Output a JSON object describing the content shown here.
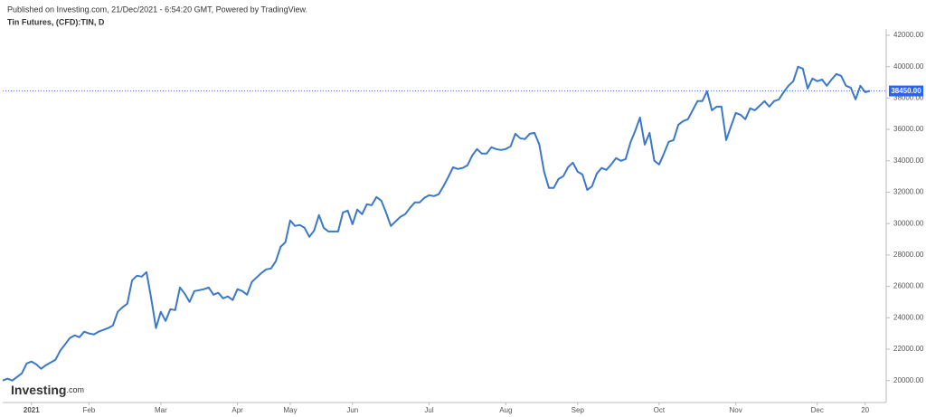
{
  "header": "Published on Investing.com, 21/Dec/2021 - 6:54:20 GMT, Powered by TradingView.",
  "logo": {
    "main": "Investing",
    "suffix": ".com"
  },
  "chart_data": {
    "type": "line",
    "title": "Tin Futures, (CFD):TIN, D",
    "color": "#3b78c6",
    "categories": [
      null,
      null,
      null,
      null,
      null,
      null,
      "2021",
      null,
      null,
      null,
      null,
      null,
      null,
      null,
      null,
      null,
      null,
      null,
      "Feb",
      null,
      null,
      null,
      null,
      null,
      null,
      null,
      null,
      null,
      null,
      null,
      null,
      null,
      null,
      "Mar",
      null,
      null,
      null,
      null,
      null,
      null,
      null,
      null,
      null,
      null,
      null,
      null,
      null,
      null,
      null,
      "Apr",
      null,
      null,
      null,
      null,
      null,
      null,
      null,
      null,
      null,
      null,
      "May",
      null,
      null,
      null,
      null,
      null,
      null,
      null,
      null,
      null,
      null,
      null,
      null,
      "Jun",
      null,
      null,
      null,
      null,
      null,
      null,
      null,
      null,
      null,
      null,
      null,
      null,
      null,
      null,
      null,
      "Jul",
      null,
      null,
      null,
      null,
      null,
      null,
      null,
      null,
      null,
      null,
      null,
      null,
      null,
      null,
      null,
      "Aug",
      null,
      null,
      null,
      null,
      null,
      null,
      null,
      null,
      null,
      null,
      null,
      null,
      null,
      null,
      "Sep",
      null,
      null,
      null,
      null,
      null,
      null,
      null,
      null,
      null,
      null,
      null,
      null,
      null,
      null,
      null,
      null,
      "Oct",
      null,
      null,
      null,
      null,
      null,
      null,
      null,
      null,
      null,
      null,
      null,
      null,
      null,
      null,
      null,
      "Nov",
      null,
      null,
      null,
      null,
      null,
      null,
      null,
      null,
      null,
      null,
      null,
      null,
      null,
      null,
      null,
      null,
      "Dec",
      null,
      null,
      null,
      null,
      null,
      null,
      null,
      null,
      null,
      "20",
      null
    ],
    "values": [
      20000,
      20120,
      20000,
      20230,
      20460,
      21090,
      21210,
      21040,
      20750,
      20980,
      21150,
      21320,
      21900,
      22300,
      22710,
      22880,
      22760,
      23110,
      23000,
      22940,
      23110,
      23230,
      23340,
      23510,
      24380,
      24670,
      24900,
      26390,
      26680,
      26620,
      26910,
      25240,
      23340,
      24380,
      23800,
      24550,
      24490,
      25930,
      25530,
      25010,
      25700,
      25760,
      25820,
      25930,
      25470,
      25590,
      25240,
      25360,
      25130,
      25820,
      25700,
      25470,
      26280,
      26570,
      26850,
      27080,
      27140,
      27600,
      28520,
      28810,
      30200,
      29850,
      29910,
      29730,
      29160,
      29560,
      30540,
      29730,
      29500,
      29500,
      29500,
      30710,
      30830,
      29960,
      30890,
      30600,
      31230,
      31170,
      31690,
      31460,
      30710,
      29850,
      30140,
      30430,
      30600,
      31000,
      31350,
      31350,
      31640,
      31810,
      31750,
      31870,
      32380,
      32960,
      33590,
      33480,
      33540,
      33710,
      34340,
      34750,
      34460,
      34460,
      34860,
      34750,
      34690,
      34750,
      34920,
      35720,
      35440,
      35380,
      35720,
      35780,
      35030,
      33300,
      32270,
      32270,
      32840,
      33020,
      33590,
      33880,
      33300,
      33130,
      32150,
      32380,
      33190,
      33540,
      33420,
      33770,
      34170,
      34000,
      34110,
      35150,
      35900,
      36760,
      35030,
      35780,
      34000,
      33770,
      34460,
      35210,
      35320,
      36300,
      36530,
      36650,
      37220,
      37800,
      37800,
      38430,
      37220,
      37450,
      37450,
      35320,
      36190,
      37050,
      36930,
      36650,
      37340,
      37220,
      37510,
      37800,
      37450,
      37800,
      37910,
      38370,
      38780,
      39070,
      39990,
      39870,
      38600,
      39240,
      39070,
      39180,
      38780,
      39180,
      39530,
      39410,
      38780,
      38660,
      37910,
      38780,
      38370,
      38450
    ],
    "ylim": [
      18600,
      42400
    ],
    "yticks": [
      {
        "value": 20000,
        "label": "20000.00"
      },
      {
        "value": 22000,
        "label": "22000.00"
      },
      {
        "value": 24000,
        "label": "24000.00"
      },
      {
        "value": 26000,
        "label": "26000.00"
      },
      {
        "value": 28000,
        "label": "28000.00"
      },
      {
        "value": 30000,
        "label": "30000.00"
      },
      {
        "value": 32000,
        "label": "32000.00"
      },
      {
        "value": 34000,
        "label": "34000.00"
      },
      {
        "value": 36000,
        "label": "36000.00"
      },
      {
        "value": 38000,
        "label": "38000.00"
      },
      {
        "value": 40000,
        "label": "40000.00"
      },
      {
        "value": 42000,
        "label": "42000.00"
      }
    ],
    "last_price": {
      "value": 38450,
      "label": "38450.00",
      "color": "#2962ff"
    }
  }
}
